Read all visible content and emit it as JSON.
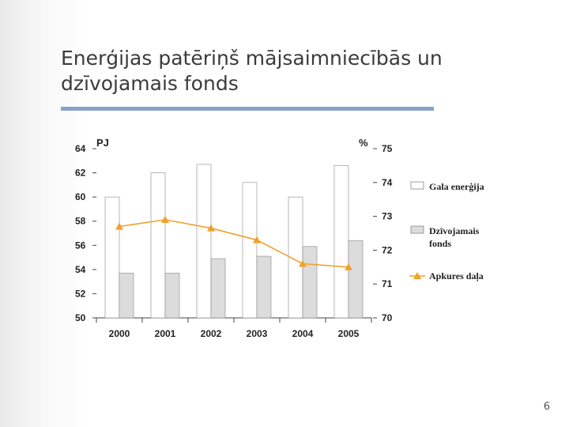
{
  "slide": {
    "title_line1": "Enerģijas patēriņš mājsaimniecībās un",
    "title_line2": "dzīvojamais fonds",
    "page_number": "6"
  },
  "chart_data": {
    "type": "bar",
    "categories": [
      "2000",
      "2001",
      "2002",
      "2003",
      "2004",
      "2005"
    ],
    "left_axis": {
      "label": "PJ",
      "range": [
        50,
        64
      ],
      "ticks": [
        "64",
        "62",
        "60",
        "58",
        "56",
        "54",
        "52",
        "50"
      ]
    },
    "right_axis": {
      "label": "%",
      "range": [
        70,
        75
      ],
      "ticks": [
        "75",
        "74",
        "73",
        "72",
        "71",
        "70"
      ]
    },
    "series": [
      {
        "name": "Gala enerģija",
        "axis": "left",
        "kind": "bar",
        "color": "#ffffff",
        "values": [
          60.0,
          62.0,
          62.7,
          61.2,
          60.0,
          62.6
        ]
      },
      {
        "name": "Dzīvojamais fonds",
        "axis": "left",
        "kind": "bar",
        "color": "#dcdcdc",
        "values": [
          53.7,
          53.7,
          54.9,
          55.1,
          55.9,
          56.4
        ]
      },
      {
        "name": "Apkures daļa",
        "axis": "right",
        "kind": "line",
        "color": "#f0a12b",
        "values": [
          72.7,
          72.9,
          72.65,
          72.3,
          71.6,
          71.5
        ]
      }
    ],
    "legend_position": "right",
    "grid": false
  }
}
